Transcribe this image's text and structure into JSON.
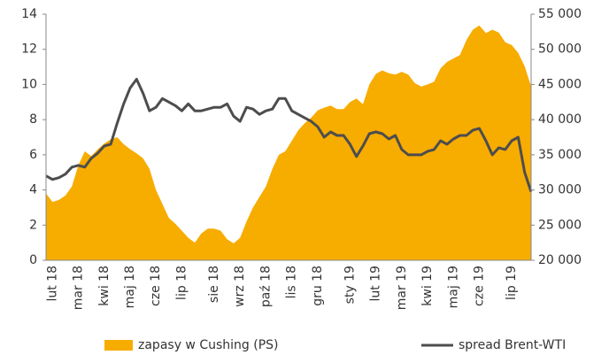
{
  "chart_data": {
    "type": "area-line",
    "categories": [
      null,
      "lut 18",
      null,
      null,
      null,
      "mar 18",
      null,
      null,
      null,
      "kwi 18",
      null,
      null,
      null,
      "maj 18",
      null,
      null,
      null,
      "cze 18",
      null,
      null,
      null,
      "lip 18",
      null,
      null,
      null,
      null,
      "sie 18",
      null,
      null,
      null,
      "wrz 18",
      null,
      null,
      null,
      "paź 18",
      null,
      null,
      null,
      "lis 18",
      null,
      null,
      null,
      "gru 18",
      null,
      null,
      null,
      null,
      "sty 19",
      null,
      null,
      null,
      "lut 19",
      null,
      null,
      null,
      "mar 19",
      null,
      null,
      null,
      "kwi 19",
      null,
      null,
      null,
      "maj 19",
      null,
      null,
      null,
      "cze 19",
      null,
      null,
      null,
      null,
      "lip 19",
      null,
      null,
      null
    ],
    "series": [
      {
        "name": "zapasy w Cushing (PS)",
        "kind": "area",
        "axis": "y2",
        "color": "#f7ac00",
        "values": [
          29500,
          28300,
          28600,
          29200,
          30500,
          33500,
          35500,
          34800,
          35800,
          36600,
          37200,
          37500,
          36500,
          35800,
          35200,
          34500,
          33000,
          30000,
          28000,
          26000,
          25200,
          24200,
          23200,
          22500,
          23800,
          24500,
          24500,
          24200,
          23000,
          22400,
          23200,
          25500,
          27500,
          29000,
          30500,
          33000,
          35000,
          35500,
          37000,
          38500,
          39500,
          40300,
          41300,
          41700,
          42000,
          41500,
          41500,
          42500,
          43000,
          42200,
          45000,
          46500,
          47000,
          46600,
          46400,
          46800,
          46400,
          45200,
          44700,
          45000,
          45400,
          47300,
          48200,
          48700,
          49200,
          51300,
          52800,
          53400,
          52300,
          52800,
          52400,
          51000,
          50600,
          49500,
          47600,
          44700
        ]
      },
      {
        "name": "spread Brent-WTI",
        "kind": "line",
        "axis": "y",
        "color": "#4d4d4d",
        "values": [
          4.8,
          4.6,
          4.7,
          4.9,
          5.3,
          5.4,
          5.3,
          5.8,
          6.1,
          6.5,
          6.6,
          7.8,
          8.9,
          9.8,
          10.3,
          9.5,
          8.5,
          8.7,
          9.2,
          9.0,
          8.8,
          8.5,
          8.9,
          8.5,
          8.5,
          8.6,
          8.7,
          8.7,
          8.9,
          8.2,
          7.9,
          8.7,
          8.6,
          8.3,
          8.5,
          8.6,
          9.2,
          9.2,
          8.5,
          8.3,
          8.1,
          7.9,
          7.6,
          7.0,
          7.3,
          7.1,
          7.1,
          6.6,
          5.9,
          6.5,
          7.2,
          7.3,
          7.2,
          6.9,
          7.1,
          6.3,
          6.0,
          6.0,
          6.0,
          6.2,
          6.3,
          6.8,
          6.6,
          6.9,
          7.1,
          7.1,
          7.4,
          7.5,
          6.8,
          6.0,
          6.4,
          6.3,
          6.8,
          7.0,
          5.0,
          3.9
        ]
      }
    ],
    "ylim": [
      0,
      14
    ],
    "yticks": [
      0,
      2,
      4,
      6,
      8,
      10,
      12,
      14
    ],
    "y2lim": [
      20000,
      55000
    ],
    "y2ticks": [
      {
        "value": 20000,
        "label": "20 000"
      },
      {
        "value": 25000,
        "label": "25 000"
      },
      {
        "value": 30000,
        "label": "30 000"
      },
      {
        "value": 35000,
        "label": "35 000"
      },
      {
        "value": 40000,
        "label": "40 000"
      },
      {
        "value": 45000,
        "label": "45 000"
      },
      {
        "value": 50000,
        "label": "50 000"
      },
      {
        "value": 55000,
        "label": "55 000"
      }
    ],
    "legend": "bottom"
  }
}
